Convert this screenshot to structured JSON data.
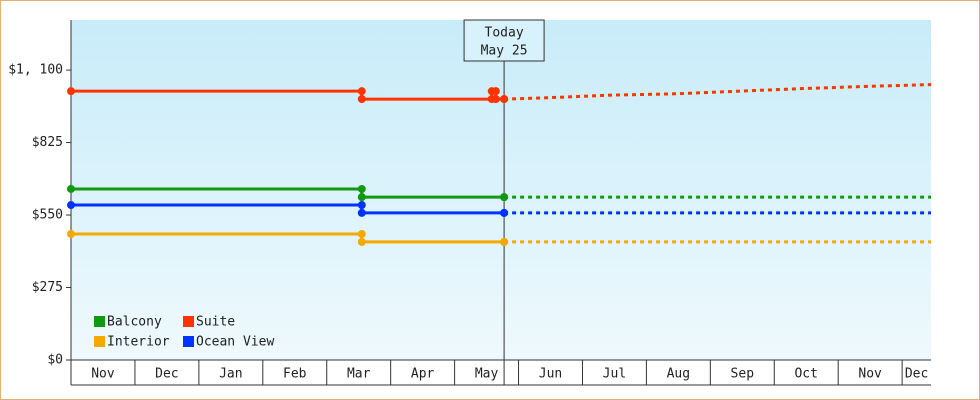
{
  "chart_data": {
    "type": "step-line",
    "categories": [
      "Nov",
      "Dec",
      "Jan",
      "Feb",
      "Mar",
      "Apr",
      "May",
      "Jun",
      "Jul",
      "Aug",
      "Sep",
      "Oct",
      "Nov",
      "Dec"
    ],
    "xlim": [
      "Nov 1",
      "Dec 15"
    ],
    "ylim": [
      0,
      1290
    ],
    "yticks": [
      {
        "value": 0,
        "label": "$0"
      },
      {
        "value": 275,
        "label": "$275"
      },
      {
        "value": 550,
        "label": "$550"
      },
      {
        "value": 825,
        "label": "$825"
      },
      {
        "value": 1100,
        "label": "$1, 100"
      }
    ],
    "today": {
      "label": "Today",
      "date": "May 25"
    },
    "legend": "bottom-left",
    "series": [
      {
        "name": "Balcony",
        "color": "#119911",
        "x": [
          "Nov 1",
          "Mar 18",
          "May 25"
        ],
        "values": [
          649,
          618,
          618
        ],
        "forecast": {
          "x": [
            "May 25",
            "Dec 15"
          ],
          "values": [
            618,
            618
          ]
        }
      },
      {
        "name": "Suite",
        "color": "#ff3300",
        "x": [
          "Nov 1",
          "Mar 18",
          "May 19",
          "May 21",
          "May 25"
        ],
        "values": [
          1020,
          990,
          1020,
          990,
          990
        ],
        "forecast": {
          "x": [
            "May 25",
            "Jun 15",
            "Jul 15",
            "Aug 15",
            "Sep 15",
            "Oct 15",
            "Nov 15",
            "Dec 15"
          ],
          "values": [
            990,
            995,
            1005,
            1010,
            1020,
            1030,
            1038,
            1045
          ]
        }
      },
      {
        "name": "Interior",
        "color": "#f4a800",
        "x": [
          "Nov 1",
          "Mar 18",
          "May 25"
        ],
        "values": [
          478,
          448,
          448
        ],
        "forecast": {
          "x": [
            "May 25",
            "Dec 15"
          ],
          "values": [
            448,
            448
          ]
        }
      },
      {
        "name": "Ocean View",
        "color": "#0033ff",
        "x": [
          "Nov 1",
          "Mar 18",
          "May 25"
        ],
        "values": [
          588,
          558,
          558
        ],
        "forecast": {
          "x": [
            "May 25",
            "Dec 15"
          ],
          "values": [
            558,
            558
          ]
        }
      }
    ]
  }
}
